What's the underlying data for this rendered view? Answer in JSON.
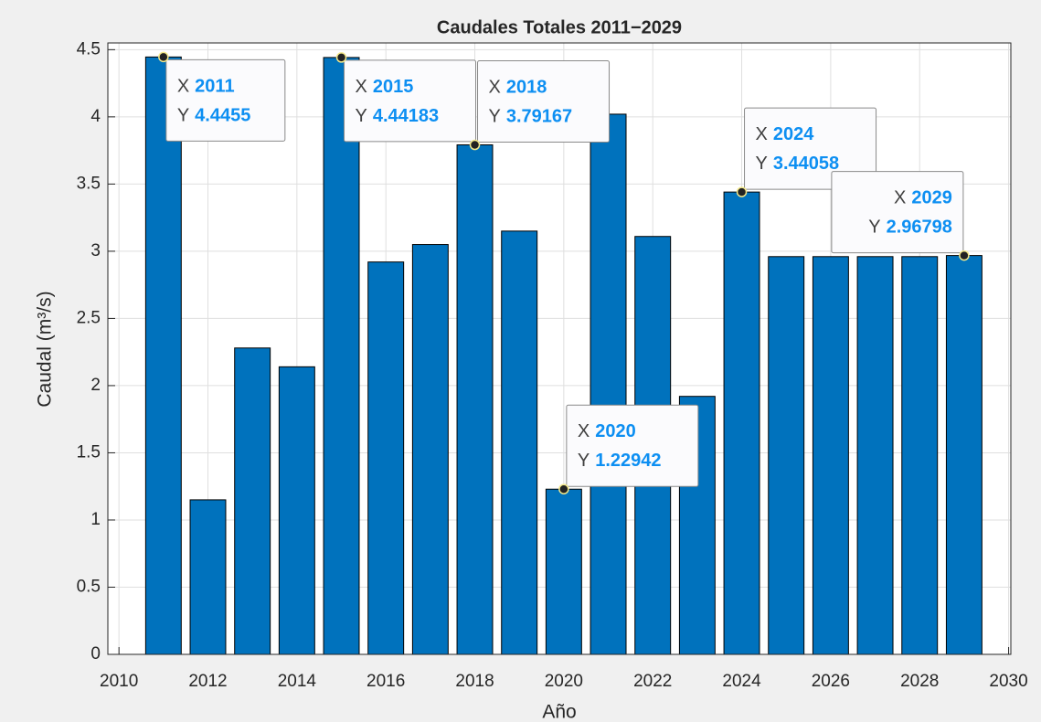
{
  "chart_data": {
    "type": "bar",
    "title": "Caudales Totales 2011−2029",
    "x_label": "Año",
    "y_label": "Caudal (m³/s)",
    "x": [
      2011,
      2012,
      2013,
      2014,
      2015,
      2016,
      2017,
      2018,
      2019,
      2020,
      2021,
      2022,
      2023,
      2024,
      2025,
      2026,
      2027,
      2028,
      2029
    ],
    "values": [
      4.4455,
      1.15,
      2.28,
      2.14,
      4.44183,
      2.92,
      3.05,
      3.79167,
      3.15,
      1.22942,
      4.02,
      3.11,
      1.92,
      3.44058,
      2.96,
      2.96,
      2.96,
      2.96,
      2.96798
    ],
    "color": "#0072bd",
    "xlim": [
      2009.75,
      2030.05
    ],
    "xticks": [
      2010,
      2012,
      2014,
      2016,
      2018,
      2020,
      2022,
      2024,
      2026,
      2028,
      2030
    ],
    "ylim": [
      0,
      4.55
    ],
    "yticks": [
      0,
      0.5,
      1,
      1.5,
      2,
      2.5,
      3,
      3.5,
      4,
      4.5
    ],
    "grid": true,
    "datatip_x_label": "X",
    "datatip_y_label": "Y",
    "datatips": [
      {
        "x": 2011,
        "y": 4.4455
      },
      {
        "x": 2015,
        "y": 4.44183
      },
      {
        "x": 2018,
        "y": 3.79167
      },
      {
        "x": 2020,
        "y": 1.22942
      },
      {
        "x": 2024,
        "y": 3.44058
      },
      {
        "x": 2029,
        "y": 2.96798
      }
    ]
  }
}
